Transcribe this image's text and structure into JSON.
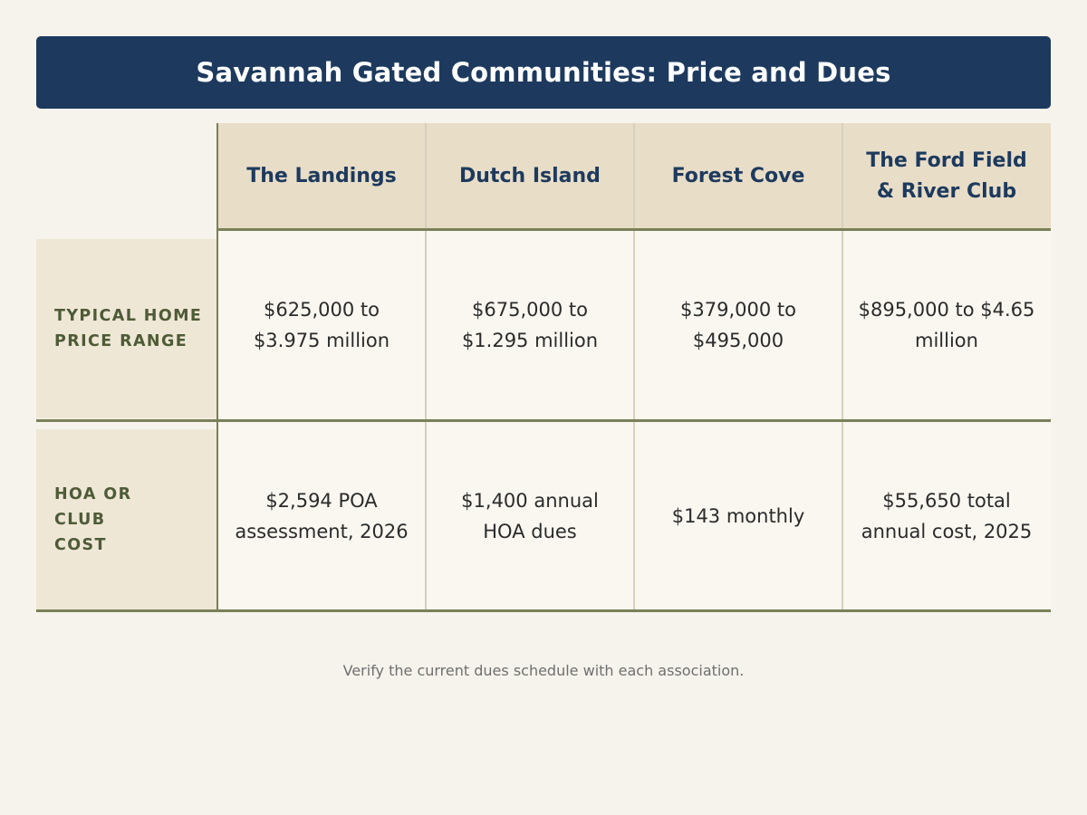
{
  "title": "Savannah Gated Communities: Price and Dues",
  "columns": [
    "The Landings",
    "Dutch Island",
    "Forest Cove",
    "The Ford Field & River Club"
  ],
  "rows": [
    {
      "label": "TYPICAL HOME PRICE RANGE",
      "cells": [
        "$625,000 to $3.975 million",
        "$675,000 to $1.295 million",
        "$379,000 to $495,000",
        "$895,000 to $4.65 million"
      ]
    },
    {
      "label": "HOA OR CLUB COST",
      "cells": [
        "$2,594 POA assessment, 2026",
        "$1,400 annual HOA dues",
        "$143 monthly",
        "$55,650 total annual cost, 2025"
      ]
    }
  ],
  "footnote": "Verify the current dues schedule with each association.",
  "colors": {
    "title_bar": "#1d3a5e",
    "column_header_bg": "#e8ddc7",
    "row_header_bg": "#efe7d6",
    "row_header_text": "#4d5b36",
    "rule_lines": "#7a8058"
  }
}
